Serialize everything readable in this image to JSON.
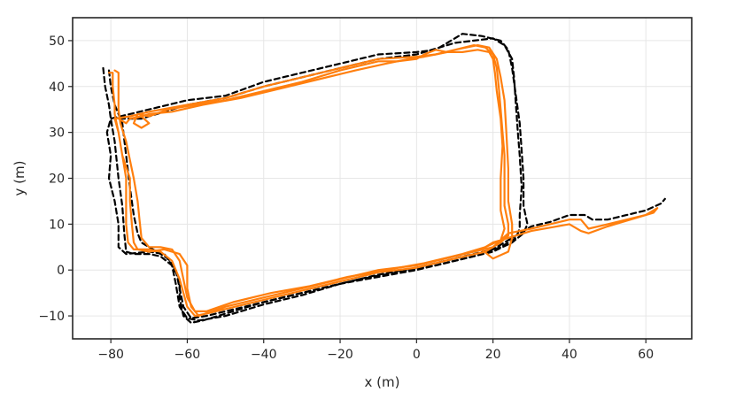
{
  "chart_data": {
    "type": "line",
    "title": "",
    "xlabel": "x (m)",
    "ylabel": "y (m)",
    "xlim": [
      -90,
      72
    ],
    "ylim": [
      -15,
      55
    ],
    "x_ticks": [
      -80,
      -60,
      -40,
      -20,
      0,
      20,
      40,
      60
    ],
    "y_ticks": [
      -10,
      0,
      10,
      20,
      30,
      40,
      50
    ],
    "x_tick_labels": [
      "−80",
      "−60",
      "−40",
      "−20",
      "0",
      "20",
      "40",
      "60"
    ],
    "y_tick_labels": [
      "−10",
      "0",
      "10",
      "20",
      "30",
      "40",
      "50"
    ],
    "grid": true,
    "legend": "none",
    "colors": {
      "ground_truth": "#000000",
      "estimate": "#ff7f0e",
      "grid": "#e6e6e6",
      "frame": "#262626"
    },
    "series": [
      {
        "style": "dashed",
        "color": "#000000",
        "points": [
          [
            -82,
            44
          ],
          [
            -81.5,
            40
          ],
          [
            -80.5,
            36
          ],
          [
            -80,
            33
          ],
          [
            -79,
            28
          ],
          [
            -78,
            20
          ],
          [
            -77,
            14
          ],
          [
            -76.5,
            8
          ],
          [
            -76,
            4
          ],
          [
            -74,
            3.5
          ],
          [
            -70,
            3.5
          ],
          [
            -67,
            3
          ],
          [
            -64,
            1
          ],
          [
            -62,
            -2
          ],
          [
            -62,
            -6
          ],
          [
            -61,
            -10
          ],
          [
            -59,
            -11.5
          ],
          [
            -56,
            -11
          ],
          [
            -50,
            -9.5
          ],
          [
            -40,
            -7
          ],
          [
            -30,
            -5
          ],
          [
            -20,
            -3
          ],
          [
            -10,
            -1.5
          ],
          [
            0,
            0
          ],
          [
            10,
            2
          ],
          [
            20,
            4
          ],
          [
            25,
            6
          ],
          [
            28,
            8
          ],
          [
            29,
            10
          ],
          [
            28,
            14
          ],
          [
            28,
            20
          ],
          [
            27.5,
            26
          ],
          [
            27,
            32
          ],
          [
            26,
            38
          ],
          [
            25,
            44
          ],
          [
            24,
            48
          ],
          [
            22,
            50
          ],
          [
            17,
            51
          ],
          [
            12,
            51.5
          ],
          [
            5,
            48
          ],
          [
            0,
            47.5
          ],
          [
            -10,
            47
          ],
          [
            -20,
            45
          ],
          [
            -30,
            43
          ],
          [
            -40,
            41
          ],
          [
            -50,
            38
          ],
          [
            -60,
            37
          ],
          [
            -70,
            35
          ],
          [
            -75,
            34
          ],
          [
            -80,
            33
          ],
          [
            -81,
            30
          ],
          [
            -80,
            25
          ],
          [
            -80.5,
            20
          ],
          [
            -79,
            15
          ],
          [
            -78,
            10
          ],
          [
            -78,
            5
          ],
          [
            -76,
            3.5
          ],
          [
            -70,
            4
          ],
          [
            -66,
            3.5
          ],
          [
            -64,
            1
          ],
          [
            -63,
            -3
          ],
          [
            -62,
            -8
          ],
          [
            -60,
            -10.5
          ],
          [
            -57,
            -11
          ],
          [
            -50,
            -10
          ],
          [
            -40,
            -7.5
          ],
          [
            -30,
            -5.5
          ],
          [
            -20,
            -3
          ],
          [
            -10,
            -1
          ],
          [
            0,
            0.5
          ],
          [
            10,
            2.5
          ],
          [
            20,
            4.5
          ],
          [
            25,
            7
          ],
          [
            28,
            8.5
          ],
          [
            30,
            9.5
          ],
          [
            35,
            10.5
          ],
          [
            40,
            12
          ],
          [
            44,
            12
          ],
          [
            46,
            11
          ],
          [
            50,
            11
          ],
          [
            60,
            13
          ],
          [
            64,
            14.5
          ],
          [
            65,
            15.5
          ]
        ]
      },
      {
        "style": "dashed",
        "color": "#000000",
        "points": [
          [
            -80.5,
            43.5
          ],
          [
            -80,
            40
          ],
          [
            -79,
            36
          ],
          [
            -78,
            34
          ],
          [
            -77,
            32
          ],
          [
            -76,
            25
          ],
          [
            -75,
            18
          ],
          [
            -74,
            12
          ],
          [
            -73,
            8
          ],
          [
            -72,
            6
          ],
          [
            -68,
            4
          ],
          [
            -65,
            2.5
          ],
          [
            -63,
            0
          ],
          [
            -62,
            -4
          ],
          [
            -61,
            -8
          ],
          [
            -59,
            -10.5
          ],
          [
            -55,
            -10
          ],
          [
            -45,
            -8
          ],
          [
            -35,
            -6
          ],
          [
            -25,
            -4
          ],
          [
            -15,
            -2
          ],
          [
            -5,
            -0.5
          ],
          [
            5,
            1
          ],
          [
            15,
            3
          ],
          [
            22,
            5
          ],
          [
            26,
            7
          ],
          [
            27,
            9
          ],
          [
            27,
            12
          ],
          [
            27.5,
            18
          ],
          [
            27,
            25
          ],
          [
            26.5,
            30
          ],
          [
            26,
            36
          ],
          [
            25.5,
            42
          ],
          [
            25,
            46
          ],
          [
            23,
            49
          ],
          [
            20,
            50.5
          ],
          [
            15,
            50
          ],
          [
            10,
            49.5
          ],
          [
            0,
            47
          ],
          [
            -10,
            46
          ],
          [
            -20,
            44
          ],
          [
            -30,
            42
          ],
          [
            -40,
            40
          ],
          [
            -50,
            37.5
          ],
          [
            -60,
            36
          ],
          [
            -68,
            34
          ],
          [
            -72,
            33
          ],
          [
            -78,
            33
          ]
        ]
      },
      {
        "style": "solid",
        "color": "#ff7f0e",
        "points": [
          [
            -80.5,
            43
          ],
          [
            -79.5,
            43
          ],
          [
            -79.5,
            40
          ],
          [
            -79,
            36
          ],
          [
            -79,
            34
          ],
          [
            -78,
            30
          ],
          [
            -77,
            25
          ],
          [
            -76,
            20
          ],
          [
            -76,
            15
          ],
          [
            -76,
            10
          ],
          [
            -75.5,
            6
          ],
          [
            -74,
            4.5
          ],
          [
            -70,
            4.5
          ],
          [
            -67,
            4
          ],
          [
            -64,
            2
          ],
          [
            -62,
            -2
          ],
          [
            -61,
            -5
          ],
          [
            -60,
            -8
          ],
          [
            -58,
            -10
          ],
          [
            -55,
            -9.5
          ],
          [
            -50,
            -8.5
          ],
          [
            -40,
            -6.5
          ],
          [
            -30,
            -4.5
          ],
          [
            -20,
            -2.5
          ],
          [
            -10,
            -0.5
          ],
          [
            0,
            0.5
          ],
          [
            10,
            2.5
          ],
          [
            18,
            4
          ],
          [
            22,
            6
          ],
          [
            24,
            7.5
          ],
          [
            24,
            10
          ],
          [
            23,
            14
          ],
          [
            23,
            20
          ],
          [
            23,
            25
          ],
          [
            22.5,
            30
          ],
          [
            22,
            35
          ],
          [
            21.5,
            40
          ],
          [
            21,
            44
          ],
          [
            20,
            47
          ],
          [
            18,
            48.5
          ],
          [
            15,
            49
          ],
          [
            10,
            48
          ],
          [
            5,
            47
          ],
          [
            0,
            46.5
          ],
          [
            -10,
            46
          ],
          [
            -20,
            44
          ],
          [
            -30,
            42
          ],
          [
            -40,
            40
          ],
          [
            -50,
            37.5
          ],
          [
            -60,
            36
          ],
          [
            -70,
            34.5
          ],
          [
            -75,
            33.5
          ],
          [
            -79,
            33
          ],
          [
            -78,
            30
          ],
          [
            -77,
            25
          ],
          [
            -75,
            20
          ],
          [
            -75,
            15
          ],
          [
            -74.5,
            10
          ],
          [
            -74,
            6
          ],
          [
            -73,
            4.5
          ],
          [
            -70,
            4
          ],
          [
            -66,
            4.5
          ],
          [
            -62,
            3.5
          ],
          [
            -60,
            1
          ],
          [
            -60,
            -4
          ],
          [
            -59,
            -8
          ],
          [
            -57,
            -10
          ],
          [
            -50,
            -8
          ],
          [
            -40,
            -6
          ],
          [
            -30,
            -4
          ],
          [
            -20,
            -2
          ],
          [
            -10,
            0
          ],
          [
            0,
            1
          ],
          [
            10,
            3
          ],
          [
            20,
            5
          ],
          [
            24,
            8
          ],
          [
            30,
            9
          ],
          [
            40,
            11
          ],
          [
            43,
            11
          ],
          [
            45,
            9
          ],
          [
            50,
            10
          ],
          [
            60,
            12
          ],
          [
            63,
            13.5
          ],
          [
            62,
            12.5
          ],
          [
            50,
            9.5
          ],
          [
            45,
            8
          ],
          [
            43,
            8.5
          ],
          [
            40,
            10
          ],
          [
            30,
            8.5
          ],
          [
            24,
            7
          ],
          [
            20,
            6
          ],
          [
            18,
            5
          ],
          [
            17,
            4.5
          ],
          [
            20,
            2.5
          ],
          [
            24,
            4
          ],
          [
            25,
            7
          ],
          [
            25,
            10
          ],
          [
            24,
            15
          ],
          [
            24,
            22
          ],
          [
            23.5,
            30
          ],
          [
            23,
            37
          ],
          [
            22,
            42
          ],
          [
            21,
            46
          ],
          [
            19,
            48.5
          ],
          [
            16,
            49
          ],
          [
            13,
            48.5
          ],
          [
            10,
            48
          ],
          [
            8,
            47.5
          ],
          [
            5,
            48
          ],
          [
            2,
            47
          ],
          [
            0,
            46
          ],
          [
            -5,
            45.5
          ],
          [
            -10,
            45.5
          ],
          [
            -20,
            43.5
          ],
          [
            -30,
            41
          ],
          [
            -40,
            39
          ],
          [
            -50,
            37
          ],
          [
            -58,
            36
          ],
          [
            -65,
            35
          ],
          [
            -70,
            33.5
          ],
          [
            -73,
            34
          ],
          [
            -74,
            32
          ],
          [
            -72,
            31
          ],
          [
            -70,
            32
          ],
          [
            -72,
            33.5
          ],
          [
            -75,
            33
          ],
          [
            -76,
            32
          ],
          [
            -78,
            33
          ]
        ]
      },
      {
        "style": "solid",
        "color": "#ff7f0e",
        "points": [
          [
            -79,
            43.5
          ],
          [
            -78,
            43
          ],
          [
            -78,
            38
          ],
          [
            -78,
            35
          ],
          [
            -77.5,
            32
          ],
          [
            -76,
            28
          ],
          [
            -75,
            24
          ],
          [
            -74,
            20
          ],
          [
            -73,
            15
          ],
          [
            -72.5,
            11
          ],
          [
            -72,
            7
          ],
          [
            -70,
            5
          ],
          [
            -67,
            5
          ],
          [
            -64,
            4.5
          ],
          [
            -62,
            2
          ],
          [
            -61,
            -2
          ],
          [
            -60,
            -6
          ],
          [
            -58,
            -9
          ],
          [
            -55,
            -9
          ],
          [
            -48,
            -7
          ],
          [
            -38,
            -5
          ],
          [
            -28,
            -3.5
          ],
          [
            -18,
            -1.5
          ],
          [
            -8,
            0
          ],
          [
            2,
            1.5
          ],
          [
            12,
            3.5
          ],
          [
            18,
            5
          ],
          [
            22,
            6.5
          ],
          [
            23,
            9
          ],
          [
            22,
            13
          ],
          [
            22,
            20
          ],
          [
            22.5,
            27
          ],
          [
            22,
            33
          ],
          [
            21,
            39
          ],
          [
            20.5,
            43
          ],
          [
            20,
            46
          ],
          [
            19,
            47.5
          ],
          [
            16,
            48
          ],
          [
            12,
            47.5
          ],
          [
            8,
            47.5
          ],
          [
            5,
            47
          ],
          [
            2,
            46.5
          ],
          [
            -2,
            46
          ],
          [
            -8,
            45
          ],
          [
            -16,
            43.5
          ],
          [
            -26,
            41.5
          ],
          [
            -36,
            39.5
          ],
          [
            -46,
            37.5
          ],
          [
            -56,
            36
          ],
          [
            -64,
            34.5
          ],
          [
            -70,
            34
          ],
          [
            -74,
            33
          ]
        ]
      }
    ]
  }
}
